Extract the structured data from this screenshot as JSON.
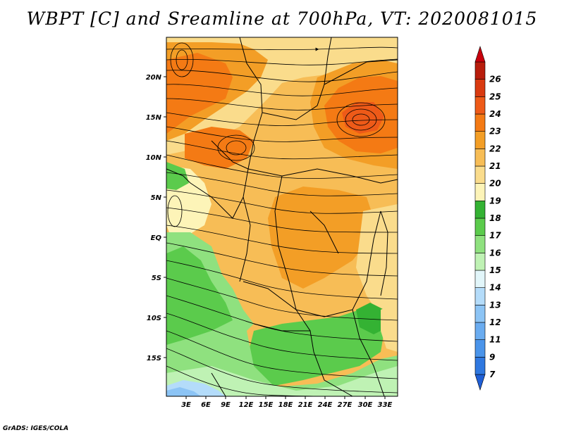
{
  "title": "WBPT [C] and Sreamline at 700hPa, VT: 2020081015",
  "credit": "GrADS: IGES/COLA",
  "lat_labels": [
    "20N",
    "15N",
    "10N",
    "5N",
    "EQ",
    "5S",
    "10S",
    "15S"
  ],
  "lon_labels": [
    "3E",
    "6E",
    "9E",
    "12E",
    "15E",
    "18E",
    "21E",
    "24E",
    "27E",
    "30E",
    "33E"
  ],
  "colorbar": {
    "labels": [
      "7",
      "9",
      "11",
      "12",
      "13",
      "14",
      "15",
      "16",
      "17",
      "18",
      "19",
      "20",
      "21",
      "22",
      "23",
      "24",
      "25",
      "26"
    ],
    "colors": [
      "#1f5fd6",
      "#2f78e0",
      "#4a94ea",
      "#6aacf0",
      "#8cc4f5",
      "#b4dcfa",
      "#e2f6fa",
      "#bff2b4",
      "#8fe17f",
      "#5bcb4c",
      "#34b233",
      "#fdf4b8",
      "#fadc8c",
      "#f7bd56",
      "#f39e26",
      "#f47a14",
      "#ee5a18",
      "#d93a10",
      "#b81d0c",
      "#c8000c"
    ]
  },
  "map": {
    "lon_range": [
      "1E",
      "35E"
    ],
    "lat_range": [
      "19S",
      "24N"
    ],
    "field": "WBPT [C]",
    "level": "700hPa"
  }
}
